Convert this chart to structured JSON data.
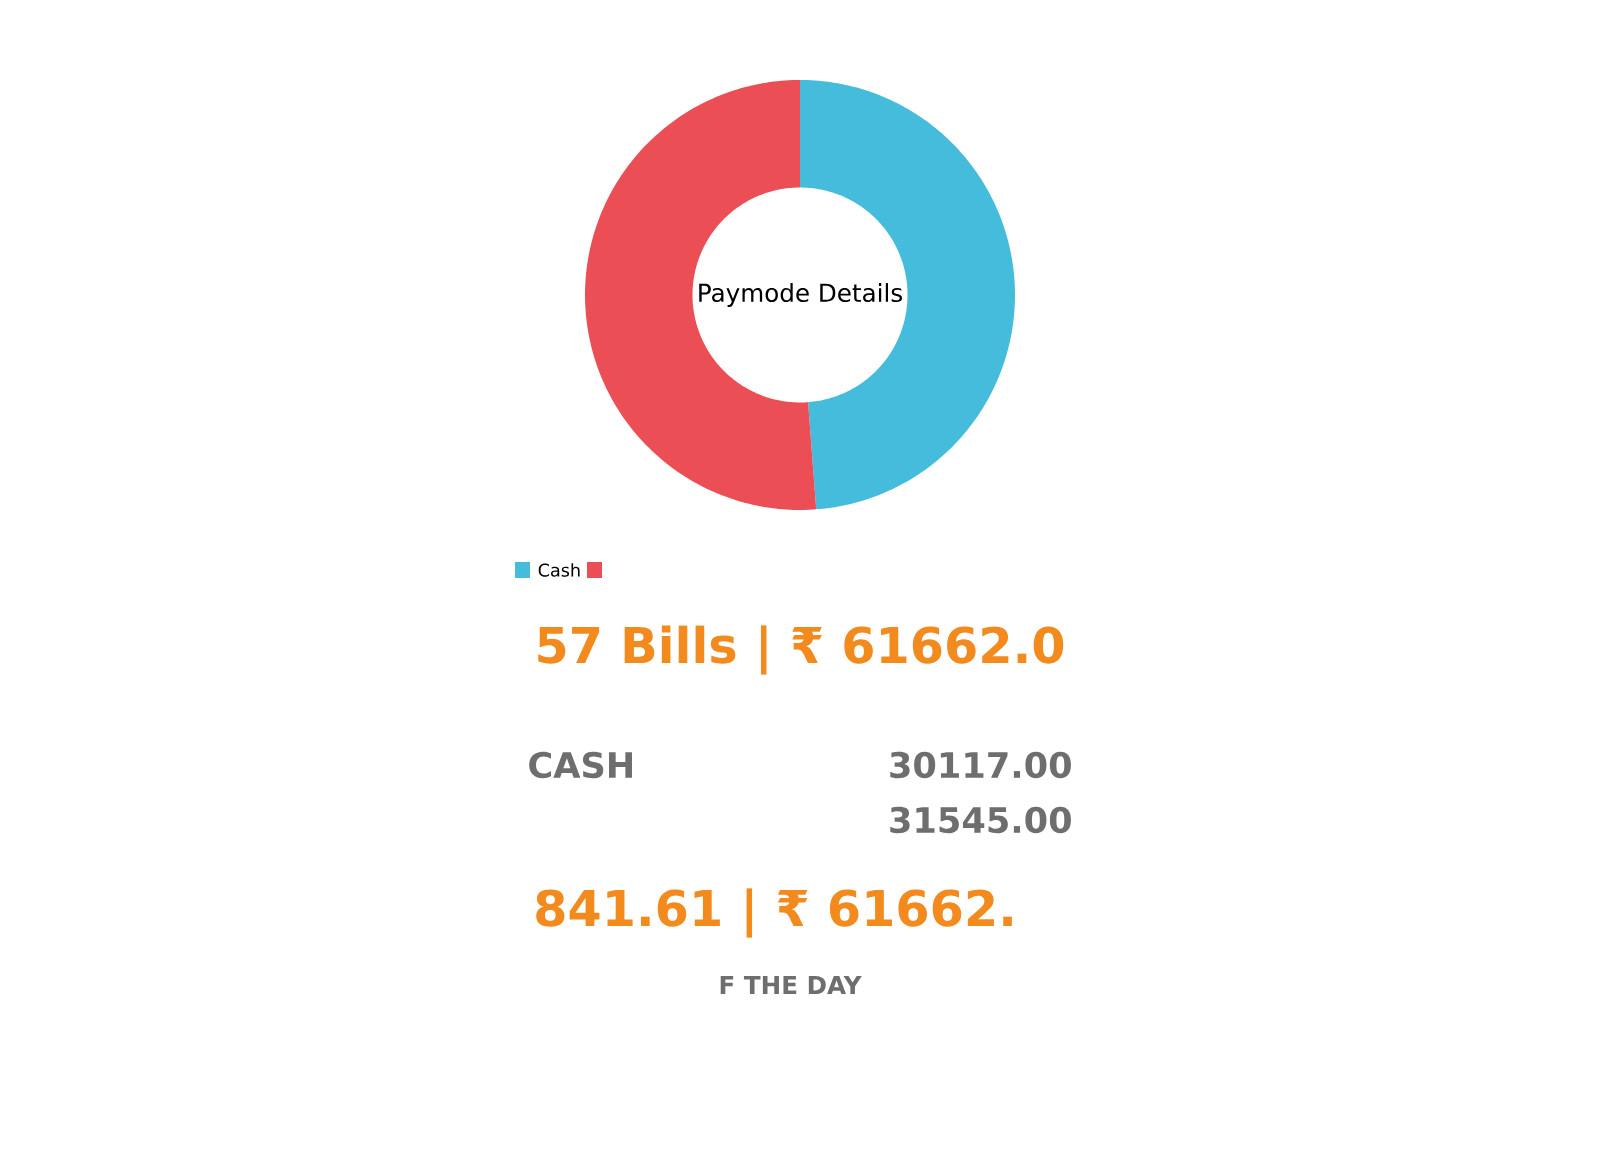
{
  "chart_data": {
    "type": "donut",
    "title": "Paymode Details",
    "categories": [
      "Cash",
      null
    ],
    "values": [
      48.8,
      51.2
    ],
    "colors": [
      "#45bcdc",
      "#ec4e55"
    ],
    "legend": "bottom left",
    "annotations": [
      "57 Bills  |  ₹ 61662.0",
      "CASH",
      "841.61 | ₹ 61662.",
      "F THE DAY",
      "30117.00",
      "31545.00"
    ]
  }
}
